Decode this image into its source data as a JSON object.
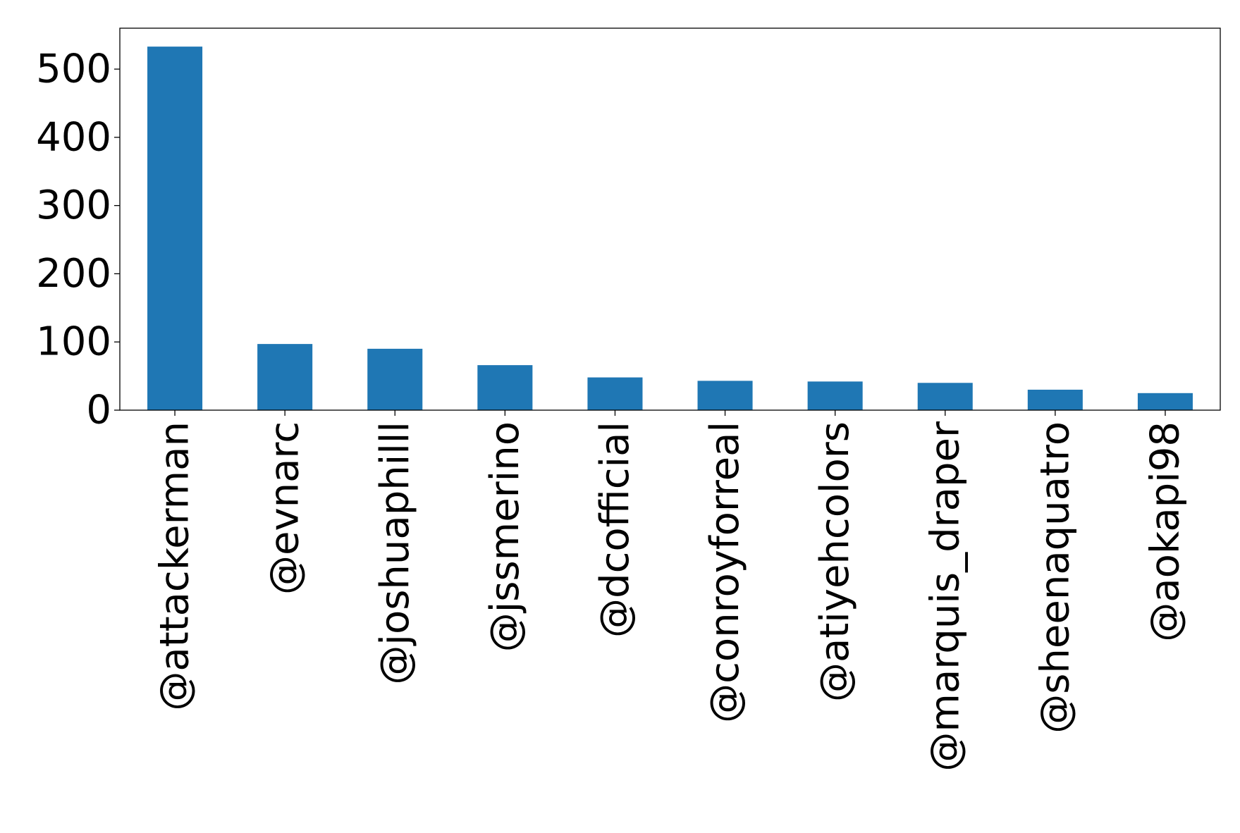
{
  "chart_data": {
    "type": "bar",
    "title": "",
    "xlabel": "",
    "ylabel": "",
    "categories": [
      "@attackerman",
      "@evnarc",
      "@joshuaphilll",
      "@jssmerino",
      "@dcofficial",
      "@conroyforreal",
      "@atiyehcolors",
      "@marquis_draper",
      "@sheenaquatro",
      "@aokapi98"
    ],
    "values": [
      533,
      97,
      90,
      66,
      48,
      43,
      42,
      40,
      30,
      25
    ],
    "ylim": [
      0,
      560
    ],
    "yticks": [
      0,
      100,
      200,
      300,
      400,
      500
    ],
    "yticklabels": [
      "0",
      "100",
      "200",
      "300",
      "400",
      "500"
    ],
    "bar_color": "#1f77b4",
    "grid": false,
    "legend": "none"
  }
}
